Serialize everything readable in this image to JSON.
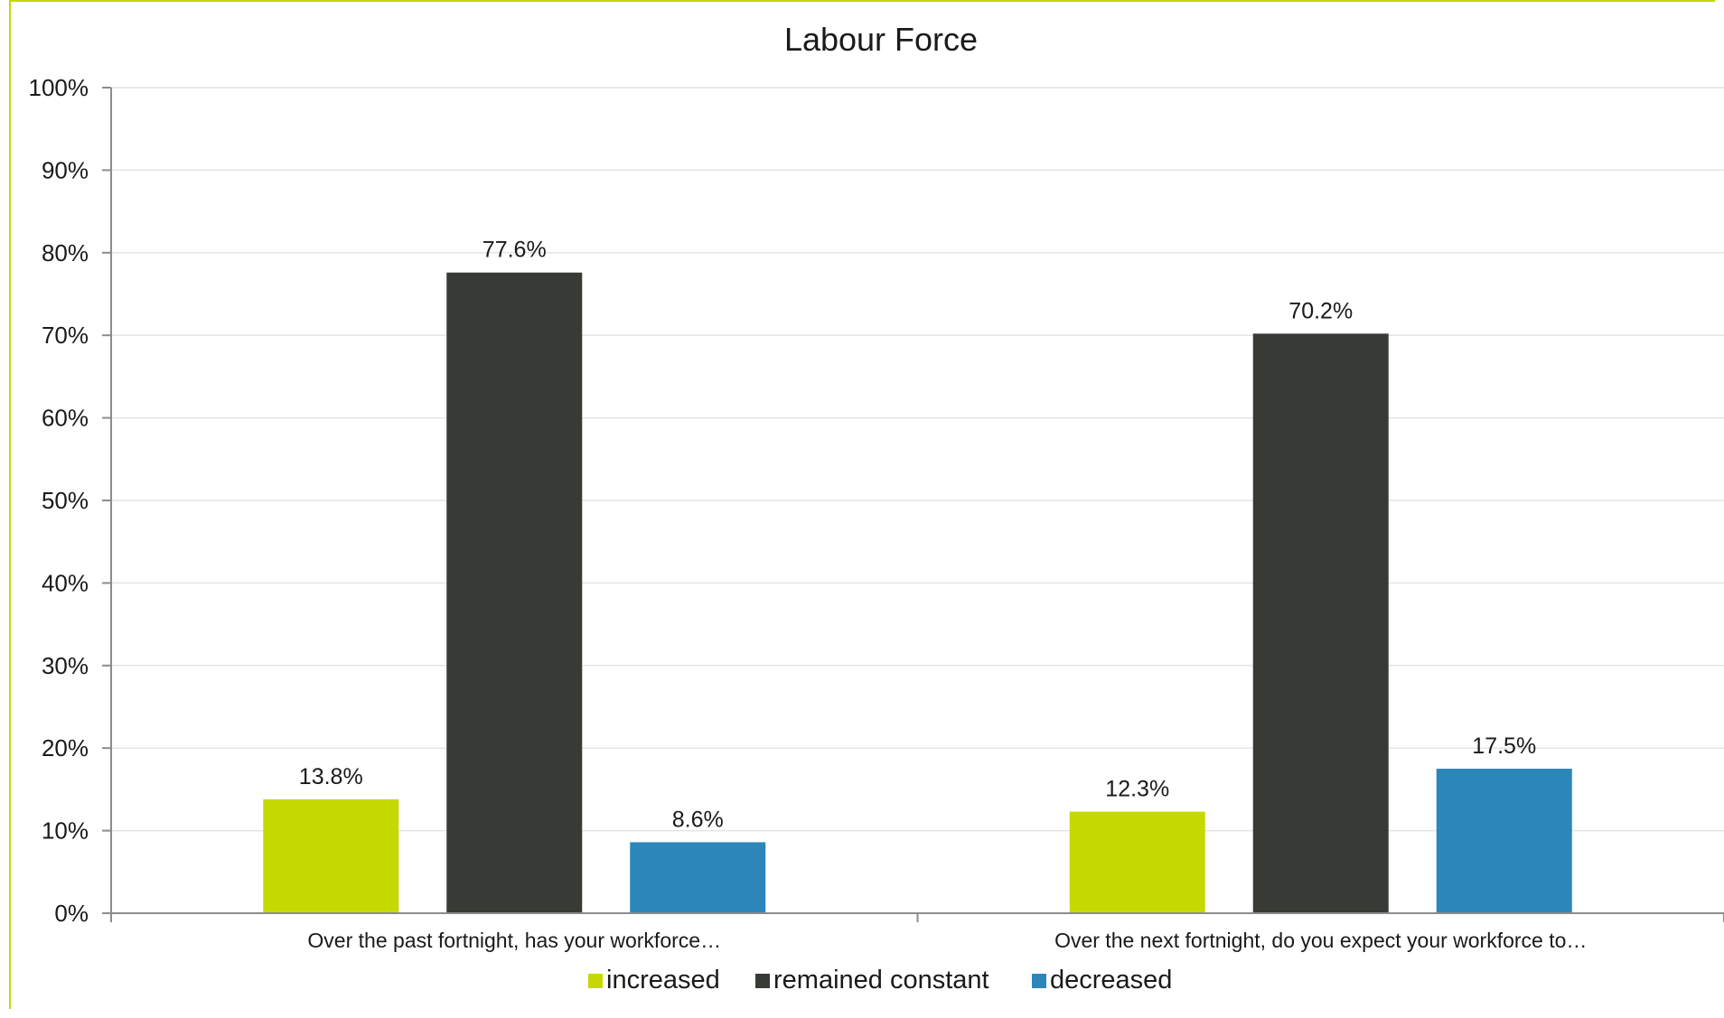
{
  "chart_data": {
    "type": "bar",
    "title": "Labour Force",
    "xlabel": "",
    "ylabel": "",
    "categories": [
      "Over the past fortnight, has your workforce…",
      "Over the next fortnight, do you expect your workforce to…"
    ],
    "series": [
      {
        "name": "increased",
        "color": "#c5d900",
        "values": [
          13.8,
          12.3
        ],
        "labels": [
          "13.8%",
          "12.3%"
        ]
      },
      {
        "name": "remained constant",
        "color": "#383a35",
        "values": [
          77.6,
          70.2
        ],
        "labels": [
          "77.6%",
          "70.2%"
        ]
      },
      {
        "name": "decreased",
        "color": "#2c86ba",
        "values": [
          8.6,
          17.5
        ],
        "labels": [
          "8.6%",
          "17.5%"
        ]
      }
    ],
    "ylim": [
      0,
      100
    ],
    "yticks": [
      0,
      10,
      20,
      30,
      40,
      50,
      60,
      70,
      80,
      90,
      100
    ],
    "ytick_labels": [
      "0%",
      "10%",
      "20%",
      "30%",
      "40%",
      "50%",
      "60%",
      "70%",
      "80%",
      "90%",
      "100%"
    ],
    "grid": true,
    "legend_position": "bottom"
  }
}
